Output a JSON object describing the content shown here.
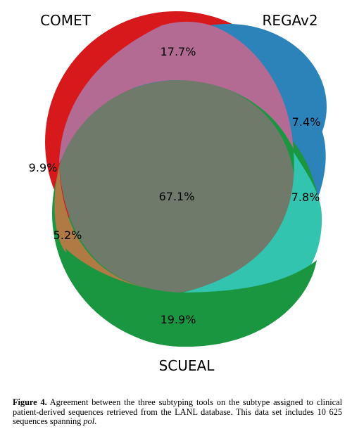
{
  "diagram": {
    "type": "venn3",
    "sets": [
      {
        "key": "comet",
        "label": "COMET",
        "color": "#d7191c"
      },
      {
        "key": "regav2",
        "label": "REGAv2",
        "color": "#2b83ba"
      },
      {
        "key": "scueal",
        "label": "SCUEAL",
        "color": "#1a9641"
      }
    ],
    "regions": [
      {
        "key": "comet_regav2",
        "label": "17.7%",
        "color": "#b36b94"
      },
      {
        "key": "comet_only",
        "label": "9.9%",
        "color": "#d7191c"
      },
      {
        "key": "regav2_only",
        "label": "7.4%",
        "color": "#2b83ba"
      },
      {
        "key": "all_three",
        "label": "67.1%",
        "color": "#6f7a6b"
      },
      {
        "key": "regav2_scueal",
        "label": "7.8%",
        "color": "#33c4b0"
      },
      {
        "key": "comet_scueal",
        "label": "5.2%",
        "color": "#b07a45"
      },
      {
        "key": "scueal_only",
        "label": "19.9%",
        "color": "#1a9641"
      }
    ]
  },
  "caption": {
    "label": "Figure 4.",
    "text_before": "Agreement between the three subtyping tools on the subtype assigned to clinical patient-derived sequences retrieved from the LANL database. This data set includes 10 625 sequences spanning",
    "emphasis": "pol",
    "text_after": "."
  }
}
